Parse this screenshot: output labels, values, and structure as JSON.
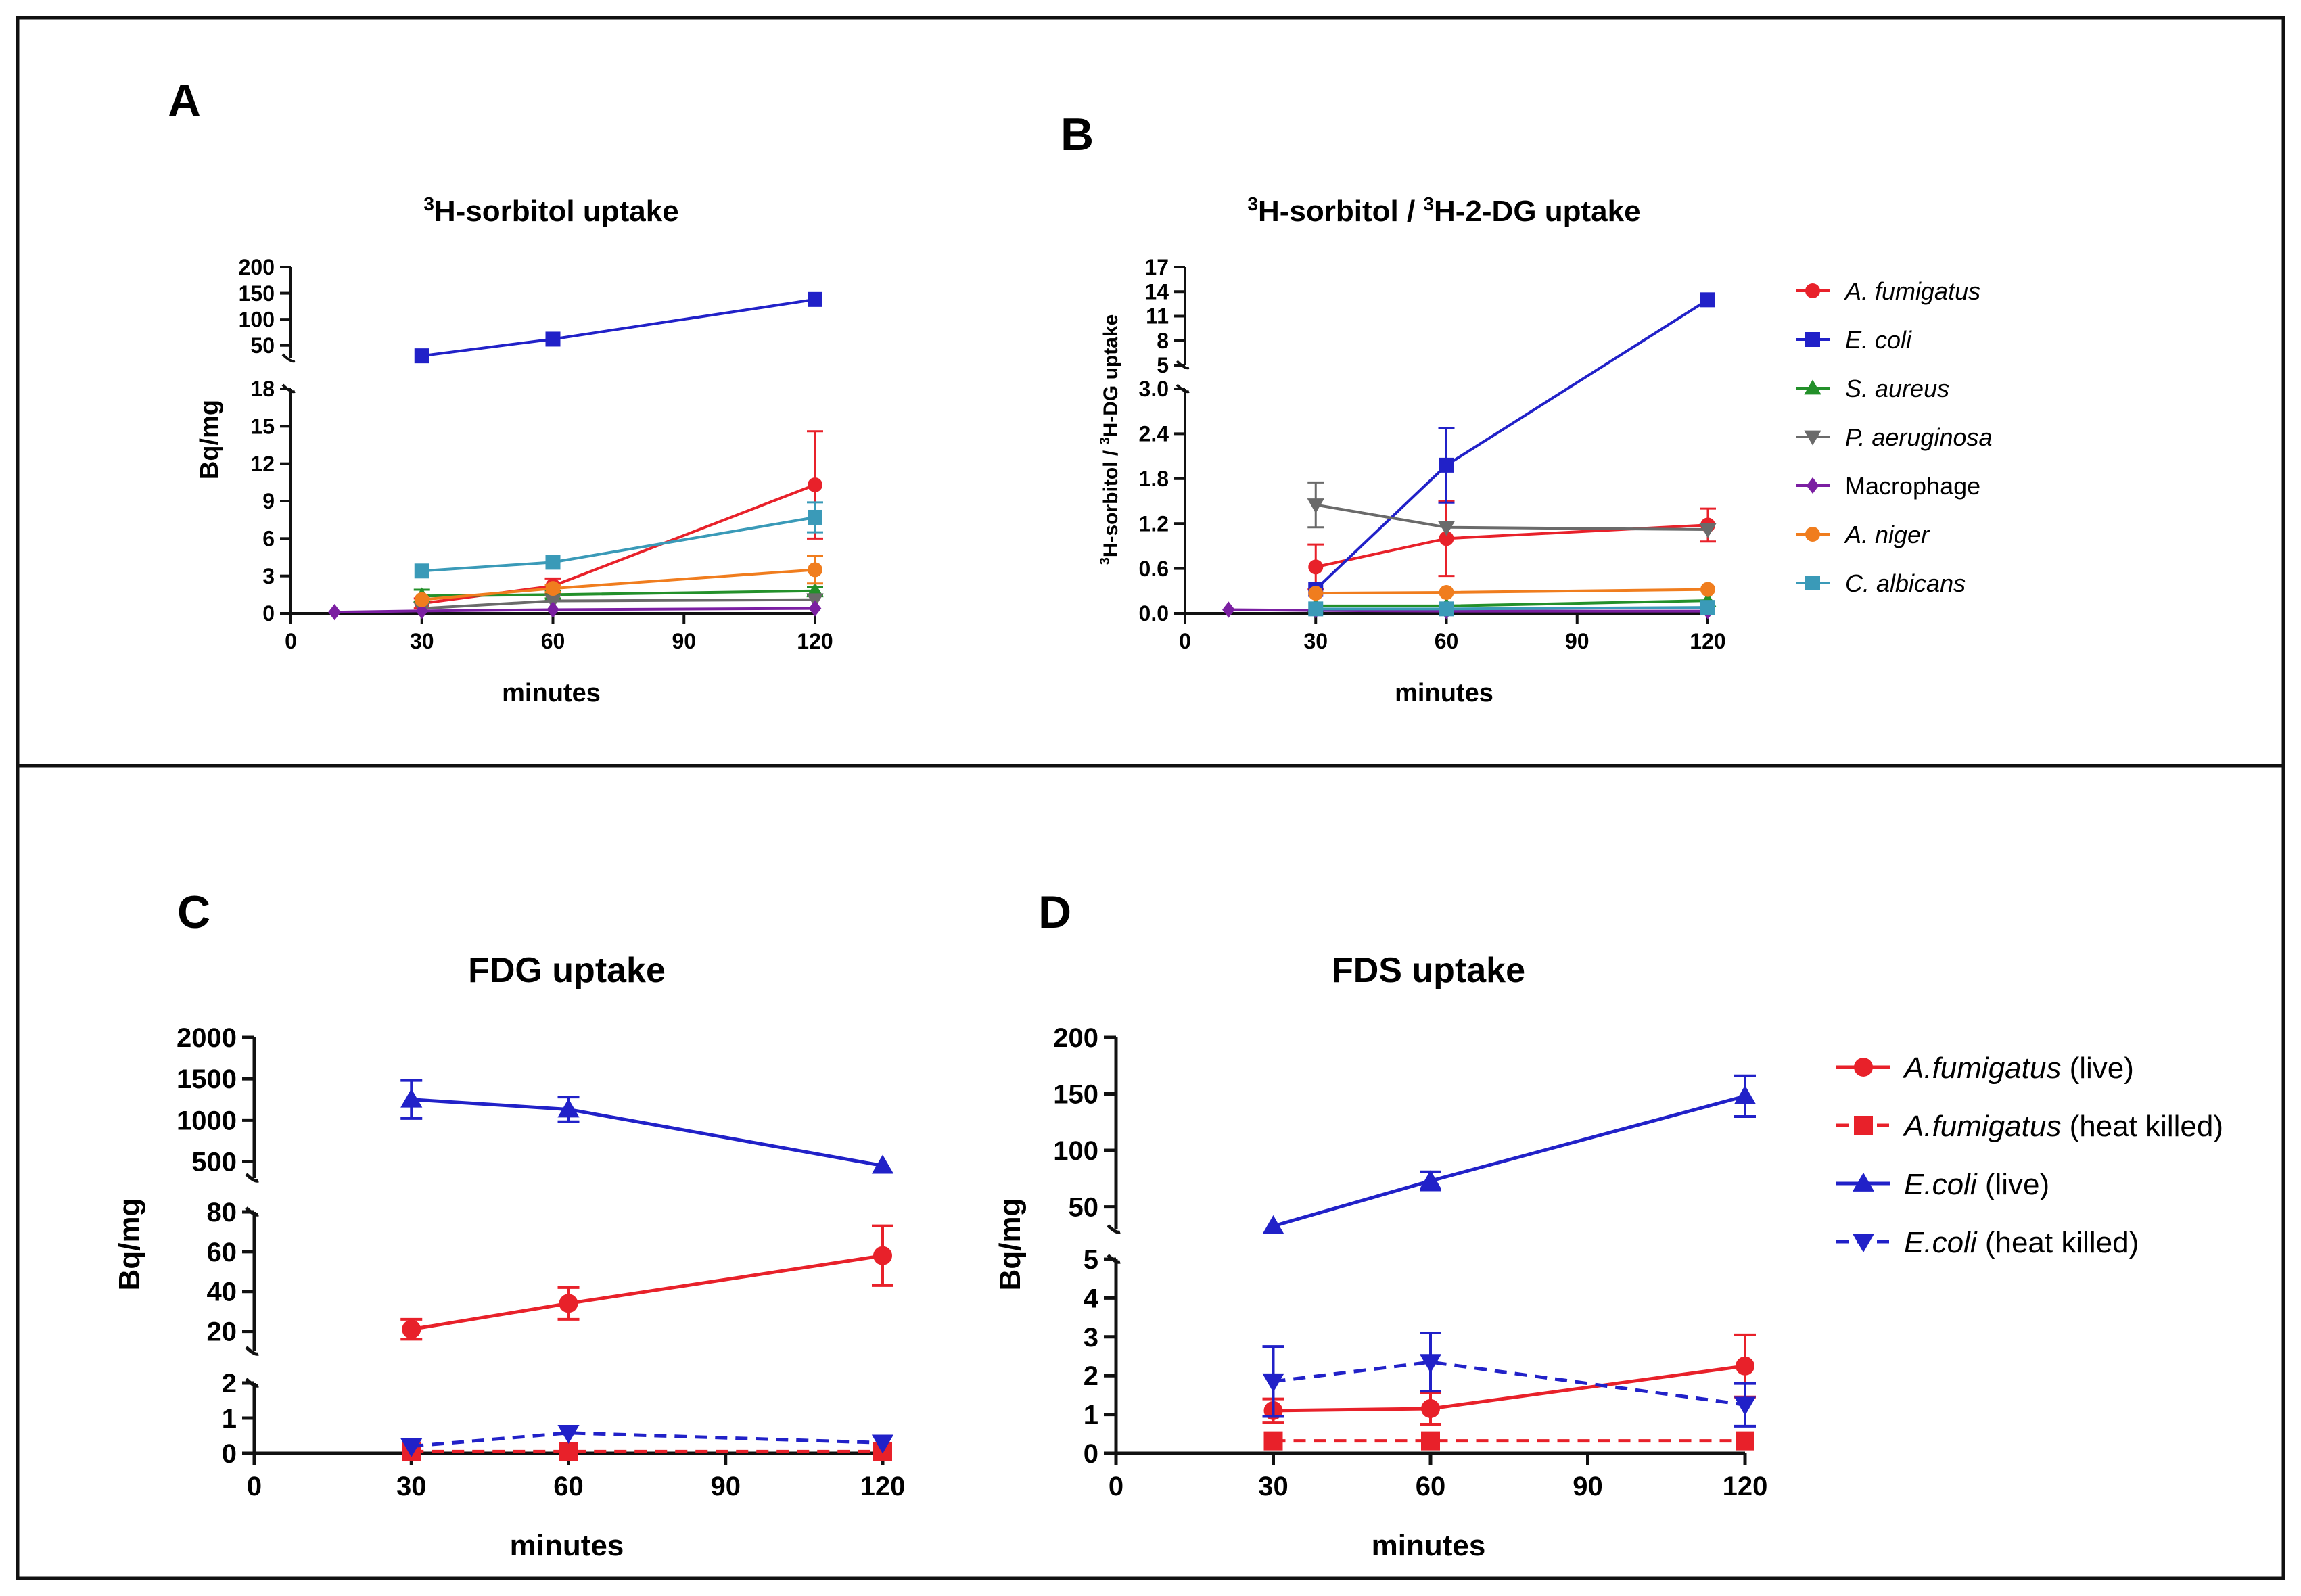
{
  "figure": {
    "border_color": "#111111"
  },
  "chart_data": [
    {
      "id": "A",
      "type": "line",
      "panel_label": "A",
      "title_sup": "3",
      "title": "H-sorbitol uptake",
      "xlabel": "minutes",
      "ylabel": "Bq/mg",
      "xticks": [
        "0",
        "30",
        "60",
        "90",
        "120"
      ],
      "xlim": [
        0,
        120
      ],
      "ylim_lower": [
        0,
        18
      ],
      "yticks_lower": [
        "0",
        "3",
        "6",
        "9",
        "12",
        "15",
        "18"
      ],
      "ylim_upper": [
        25,
        200
      ],
      "yticks_upper": [
        "50",
        "100",
        "150",
        "200"
      ],
      "series": [
        {
          "name": "A. fumigatus",
          "color": "#e8212a",
          "marker": "circle",
          "x": [
            30,
            60,
            120
          ],
          "y": [
            0.8,
            2.2,
            10.3
          ],
          "err": [
            0.4,
            0.6,
            4.3
          ]
        },
        {
          "name": "E. coli",
          "color": "#2121c8",
          "marker": "square",
          "x": [
            30,
            60,
            120
          ],
          "y": [
            30,
            62,
            138
          ],
          "err": [
            0,
            0,
            0
          ]
        },
        {
          "name": "S. aureus",
          "color": "#23902a",
          "marker": "triangle-up",
          "x": [
            30,
            60,
            120
          ],
          "y": [
            1.4,
            1.5,
            1.8
          ],
          "err": [
            0.5,
            0.3,
            0.3
          ]
        },
        {
          "name": "P. aeruginosa",
          "color": "#6a6a6a",
          "marker": "triangle-down",
          "x": [
            30,
            60,
            120
          ],
          "y": [
            0.4,
            1.0,
            1.1
          ],
          "err": [
            0,
            0,
            0
          ]
        },
        {
          "name": "Macrophage",
          "color": "#7b1fa2",
          "marker": "diamond",
          "x": [
            10,
            30,
            60,
            120
          ],
          "y": [
            0.1,
            0.2,
            0.3,
            0.4
          ],
          "err": [
            0,
            0,
            0,
            0
          ]
        },
        {
          "name": "A. niger",
          "color": "#f07d1e",
          "marker": "circle",
          "x": [
            30,
            60,
            120
          ],
          "y": [
            1.1,
            2.0,
            3.5
          ],
          "err": [
            0,
            0.3,
            1.1
          ]
        },
        {
          "name": "C. albicans",
          "color": "#3a9ab8",
          "marker": "square",
          "x": [
            30,
            60,
            120
          ],
          "y": [
            3.4,
            4.1,
            7.7
          ],
          "err": [
            0,
            0,
            1.2
          ]
        }
      ]
    },
    {
      "id": "B",
      "type": "line",
      "panel_label": "B",
      "title_sup1": "3",
      "title_part1": "H-sorbitol / ",
      "title_sup2": "3",
      "title_part2": "H-2-DG uptake",
      "xlabel": "minutes",
      "ylabel_sup1": "3",
      "ylabel_part1": "H-sorbitol / ",
      "ylabel_sup2": "3",
      "ylabel_part2": "H-DG uptake",
      "xticks": [
        "0",
        "30",
        "60",
        "90",
        "120"
      ],
      "xlim": [
        0,
        120
      ],
      "ylim_lower": [
        0,
        3
      ],
      "yticks_lower": [
        "0.0",
        "0.6",
        "1.2",
        "1.8",
        "2.4",
        "3.0"
      ],
      "ylim_upper": [
        5,
        17
      ],
      "yticks_upper": [
        "5",
        "8",
        "11",
        "14",
        "17"
      ],
      "legend": [
        "A. fumigatus",
        "E.  coli",
        "S. aureus",
        "P. aeruginosa",
        "Macrophage",
        "A. niger",
        "C. albicans"
      ],
      "legend_italic": [
        true,
        true,
        true,
        true,
        false,
        true,
        true
      ],
      "series": [
        {
          "name": "A. fumigatus",
          "color": "#e8212a",
          "marker": "circle",
          "x": [
            30,
            60,
            120
          ],
          "y": [
            0.62,
            1.0,
            1.18
          ],
          "err": [
            0.3,
            0.5,
            0.22
          ]
        },
        {
          "name": "E. coli",
          "color": "#2121c8",
          "marker": "square",
          "x": [
            30,
            60,
            120
          ],
          "y": [
            0.32,
            1.98,
            13.0
          ],
          "err": [
            0,
            0.5,
            0
          ]
        },
        {
          "name": "S. aureus",
          "color": "#23902a",
          "marker": "triangle-up",
          "x": [
            30,
            60,
            120
          ],
          "y": [
            0.1,
            0.1,
            0.17
          ],
          "err": [
            0,
            0,
            0
          ]
        },
        {
          "name": "P. aeruginosa",
          "color": "#6a6a6a",
          "marker": "triangle-down",
          "x": [
            30,
            60,
            120
          ],
          "y": [
            1.45,
            1.15,
            1.12
          ],
          "err": [
            0.3,
            0,
            0
          ]
        },
        {
          "name": "Macrophage",
          "color": "#7b1fa2",
          "marker": "diamond",
          "x": [
            10,
            30,
            60,
            120
          ],
          "y": [
            0.05,
            0.04,
            0.03,
            0.03
          ],
          "err": [
            0,
            0,
            0,
            0
          ]
        },
        {
          "name": "A. niger",
          "color": "#f07d1e",
          "marker": "circle",
          "x": [
            30,
            60,
            120
          ],
          "y": [
            0.27,
            0.28,
            0.32
          ],
          "err": [
            0,
            0,
            0
          ]
        },
        {
          "name": "C. albicans",
          "color": "#3a9ab8",
          "marker": "square",
          "x": [
            30,
            60,
            120
          ],
          "y": [
            0.06,
            0.06,
            0.08
          ],
          "err": [
            0,
            0,
            0
          ]
        }
      ]
    },
    {
      "id": "C",
      "type": "line",
      "panel_label": "C",
      "title": "FDG uptake",
      "xlabel": "minutes",
      "ylabel": "Bq/mg",
      "xticks": [
        "0",
        "30",
        "60",
        "90",
        "120"
      ],
      "xlim": [
        0,
        120
      ],
      "ylim_lower": [
        0,
        2
      ],
      "yticks_lower": [
        "0",
        "1",
        "2"
      ],
      "ylim_middle": [
        10,
        80
      ],
      "yticks_middle": [
        "20",
        "40",
        "60",
        "80"
      ],
      "ylim_upper": [
        300,
        2000
      ],
      "yticks_upper": [
        "500",
        "1000",
        "1500",
        "2000"
      ],
      "series": [
        {
          "name": "A.fumigatus (live)",
          "color": "#e8212a",
          "marker": "circle",
          "dashed": false,
          "x": [
            30,
            60,
            120
          ],
          "y": [
            21,
            34,
            58
          ],
          "err": [
            5,
            8,
            15
          ]
        },
        {
          "name": "A.fumigatus (heat killed)",
          "color": "#e8212a",
          "marker": "square",
          "dashed": true,
          "x": [
            30,
            60,
            120
          ],
          "y": [
            0.05,
            0.05,
            0.05
          ],
          "err": [
            0,
            0,
            0
          ]
        },
        {
          "name": "E.coli (live)",
          "color": "#2121c8",
          "marker": "triangle-up",
          "dashed": false,
          "x": [
            30,
            60,
            120
          ],
          "y": [
            1250,
            1130,
            450
          ],
          "err": [
            230,
            150,
            0
          ]
        },
        {
          "name": "E.coli (heat killed)",
          "color": "#2121c8",
          "marker": "triangle-down",
          "dashed": true,
          "x": [
            30,
            60,
            120
          ],
          "y": [
            0.2,
            0.58,
            0.3
          ],
          "err": [
            0,
            0,
            0
          ]
        }
      ]
    },
    {
      "id": "D",
      "type": "line",
      "panel_label": "D",
      "title": "FDS uptake",
      "xlabel": "minutes",
      "ylabel": "Bq/mg",
      "xticks": [
        "0",
        "30",
        "60",
        "90",
        "120"
      ],
      "xlim": [
        0,
        120
      ],
      "ylim_lower": [
        0,
        5
      ],
      "yticks_lower": [
        "0",
        "1",
        "2",
        "3",
        "4",
        "5"
      ],
      "ylim_upper": [
        30,
        200
      ],
      "yticks_upper": [
        "50",
        "100",
        "150",
        "200"
      ],
      "legend": [
        {
          "name": "A.fumigatus",
          "suffix": " (live)"
        },
        {
          "name": "A.fumigatus",
          "suffix": " (heat killed)"
        },
        {
          "name": "E.coli",
          "suffix": " (live)"
        },
        {
          "name": "E.coli",
          "suffix": " (heat killed)"
        }
      ],
      "series": [
        {
          "name": "A.fumigatus (live)",
          "color": "#e8212a",
          "marker": "circle",
          "dashed": false,
          "x": [
            30,
            60,
            120
          ],
          "y": [
            1.1,
            1.15,
            2.25
          ],
          "err": [
            0.3,
            0.4,
            0.8
          ]
        },
        {
          "name": "A.fumigatus (heat killed)",
          "color": "#e8212a",
          "marker": "square",
          "dashed": true,
          "x": [
            30,
            60,
            120
          ],
          "y": [
            0.32,
            0.32,
            0.32
          ],
          "err": [
            0,
            0,
            0
          ]
        },
        {
          "name": "E.coli (live)",
          "color": "#2121c8",
          "marker": "triangle-up",
          "dashed": false,
          "x": [
            30,
            60,
            120
          ],
          "y": [
            33,
            73,
            148
          ],
          "err": [
            0,
            8,
            18
          ]
        },
        {
          "name": "E.coli (heat killed)",
          "color": "#2121c8",
          "marker": "triangle-down",
          "dashed": true,
          "x": [
            30,
            60,
            120
          ],
          "y": [
            1.85,
            2.35,
            1.25
          ],
          "err": [
            0.9,
            0.75,
            0.55
          ]
        }
      ]
    }
  ]
}
